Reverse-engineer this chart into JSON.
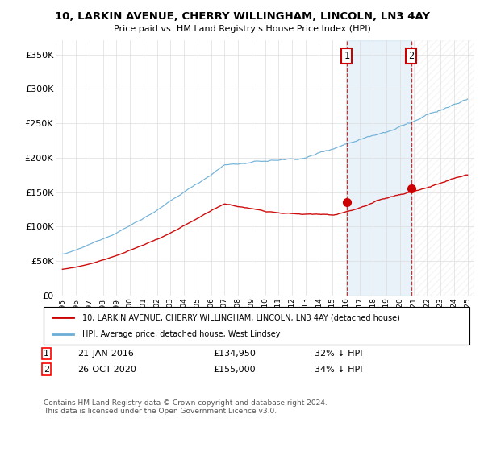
{
  "title": "10, LARKIN AVENUE, CHERRY WILLINGHAM, LINCOLN, LN3 4AY",
  "subtitle": "Price paid vs. HM Land Registry's House Price Index (HPI)",
  "legend_line1": "10, LARKIN AVENUE, CHERRY WILLINGHAM, LINCOLN, LN3 4AY (detached house)",
  "legend_line2": "HPI: Average price, detached house, West Lindsey",
  "annotation1_date": "21-JAN-2016",
  "annotation1_price": "£134,950",
  "annotation1_hpi": "32% ↓ HPI",
  "annotation2_date": "26-OCT-2020",
  "annotation2_price": "£155,000",
  "annotation2_hpi": "34% ↓ HPI",
  "footer": "Contains HM Land Registry data © Crown copyright and database right 2024.\nThis data is licensed under the Open Government Licence v3.0.",
  "hpi_color": "#6baed6",
  "price_color": "#cc0000",
  "vline_color": "#cc0000",
  "ylim": [
    0,
    370000
  ],
  "yticks": [
    0,
    50000,
    100000,
    150000,
    200000,
    250000,
    300000,
    350000
  ],
  "ytick_labels": [
    "£0",
    "£50K",
    "£100K",
    "£150K",
    "£200K",
    "£250K",
    "£300K",
    "£350K"
  ],
  "trans1_year": 2016.055,
  "trans1_price": 134950,
  "trans2_year": 2020.818,
  "trans2_price": 155000
}
